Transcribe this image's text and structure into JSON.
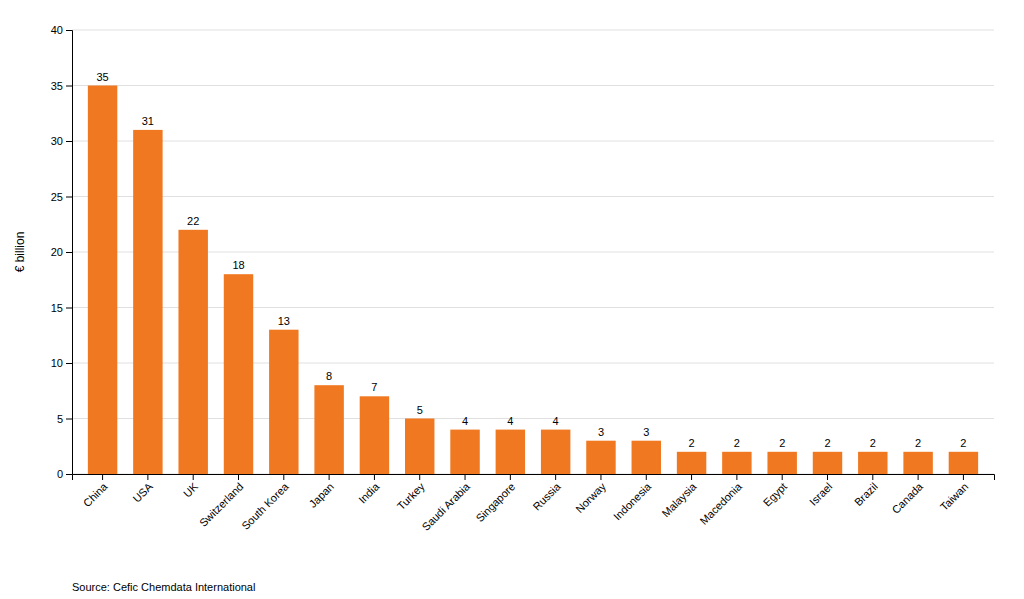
{
  "chart_data": {
    "type": "bar",
    "categories": [
      "China",
      "USA",
      "UK",
      "Switzerland",
      "South Korea",
      "Japan",
      "India",
      "Turkey",
      "Saudi Arabia",
      "Singapore",
      "Russia",
      "Norway",
      "Indonesia",
      "Malaysia",
      "Macedonia",
      "Egypt",
      "Israel",
      "Brazil",
      "Canada",
      "Taiwan"
    ],
    "values": [
      35,
      31,
      22,
      18,
      13,
      8,
      7,
      5,
      4,
      4,
      4,
      3,
      3,
      2,
      2,
      2,
      2,
      2,
      2,
      2
    ],
    "color": "#F07820",
    "ylabel": "€ billion",
    "ylim": [
      0,
      40
    ],
    "yticks": [
      0,
      5,
      10,
      15,
      20,
      25,
      30,
      35,
      40
    ],
    "grid": true,
    "data_labels": true,
    "annotations": [
      "Source: Cefic Chemdata International"
    ]
  }
}
